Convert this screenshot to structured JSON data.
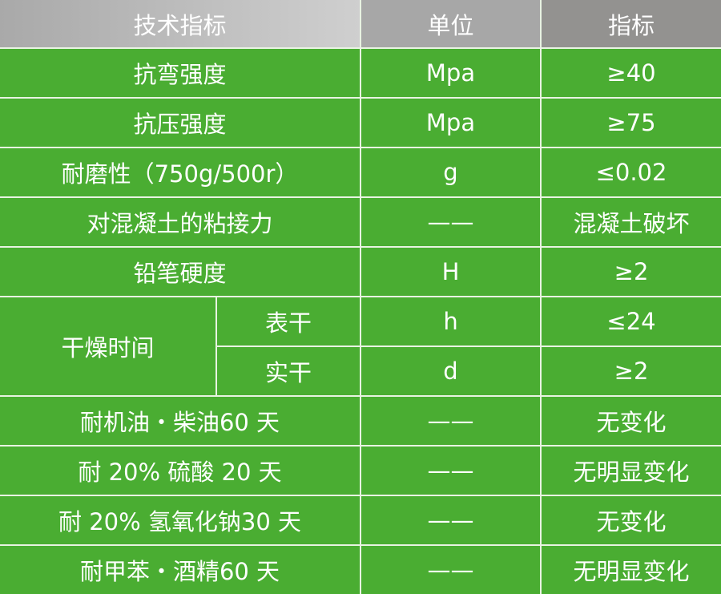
{
  "header": [
    "技术指标",
    "单位",
    "指标"
  ],
  "colors": {
    "header_light": "#cfcfcf",
    "header_mid": "#a7a7a7",
    "header_dark": "#939290",
    "row_green": "#4aad32",
    "text": "#ffffff"
  },
  "rows": [
    {
      "item": "抗弯强度",
      "unit": "Mpa",
      "value": "≥40"
    },
    {
      "item": "抗压强度",
      "unit": "Mpa",
      "value": "≥75"
    },
    {
      "item": "耐磨性（750g/500r）",
      "unit": "g",
      "value": "≤0.02"
    },
    {
      "item": "对混凝土的粘接力",
      "unit": "——",
      "value": "混凝土破坏"
    },
    {
      "item": "铅笔硬度",
      "unit": "H",
      "value": "≥2"
    }
  ],
  "drying": {
    "item": "干燥时间",
    "sub": [
      {
        "label": "表干",
        "unit": "h",
        "value": "≤24"
      },
      {
        "label": "实干",
        "unit": "d",
        "value": "≥2"
      }
    ]
  },
  "rows2": [
    {
      "item": "耐机油・柴油60 天",
      "unit": "——",
      "value": "无变化"
    },
    {
      "item": "耐 20% 硫酸 20 天",
      "unit": "——",
      "value": "无明显变化"
    },
    {
      "item": "耐 20% 氢氧化钠30 天",
      "unit": "——",
      "value": "无变化"
    },
    {
      "item": "耐甲苯・酒精60 天",
      "unit": "——",
      "value": "无明显变化"
    }
  ]
}
